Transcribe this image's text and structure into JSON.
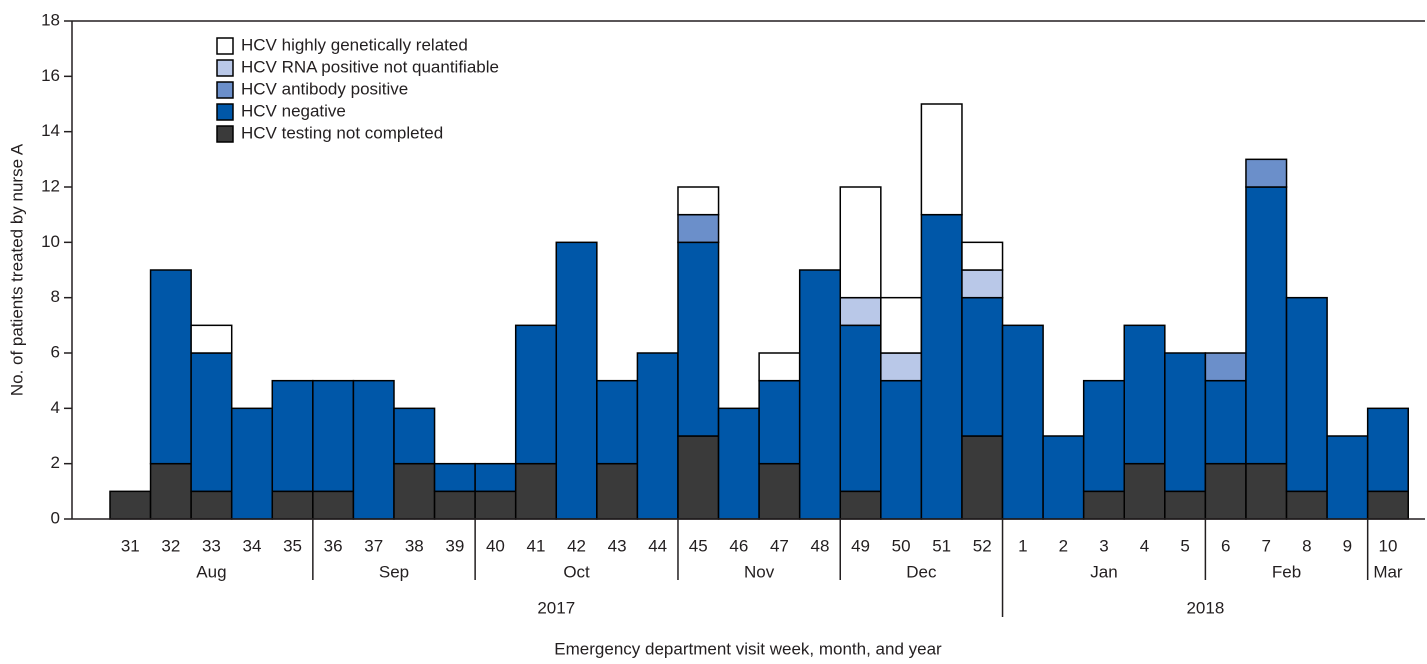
{
  "chart_data": {
    "type": "bar",
    "stacked": true,
    "y_label": "No. of patients treated by nurse A",
    "x_label": "Emergency department visit week, month, and year",
    "categories": [
      "31",
      "32",
      "33",
      "34",
      "35",
      "36",
      "37",
      "38",
      "39",
      "40",
      "41",
      "42",
      "43",
      "44",
      "45",
      "46",
      "47",
      "48",
      "49",
      "50",
      "51",
      "52",
      "1",
      "2",
      "3",
      "4",
      "5",
      "6",
      "7",
      "8",
      "9",
      "10"
    ],
    "months": [
      "Aug",
      "Sep",
      "Oct",
      "Nov",
      "Dec",
      "Jan",
      "Feb",
      "Mar"
    ],
    "years": [
      "2017",
      "2018"
    ],
    "series": [
      {
        "name": "HCV testing not completed",
        "color": "#3a3a3a",
        "values": [
          1,
          2,
          1,
          0,
          1,
          1,
          0,
          2,
          1,
          1,
          2,
          0,
          2,
          0,
          3,
          0,
          2,
          0,
          1,
          0,
          0,
          3,
          0,
          0,
          1,
          2,
          1,
          2,
          2,
          1,
          0,
          1
        ]
      },
      {
        "name": "HCV negative",
        "color": "#0057a8",
        "values": [
          0,
          7,
          5,
          4,
          4,
          4,
          5,
          2,
          1,
          1,
          5,
          10,
          3,
          6,
          7,
          4,
          3,
          9,
          6,
          5,
          11,
          5,
          7,
          3,
          4,
          5,
          5,
          3,
          10,
          7,
          3,
          3
        ]
      },
      {
        "name": "HCV antibody positive",
        "color": "#6b8fca",
        "values": [
          0,
          0,
          0,
          0,
          0,
          0,
          0,
          0,
          0,
          0,
          0,
          0,
          0,
          0,
          1,
          0,
          0,
          0,
          0,
          0,
          0,
          0,
          0,
          0,
          0,
          0,
          0,
          1,
          1,
          0,
          0,
          0
        ]
      },
      {
        "name": "HCV RNA positive not quantifiable",
        "color": "#b9c8e8",
        "values": [
          0,
          0,
          0,
          0,
          0,
          0,
          0,
          0,
          0,
          0,
          0,
          0,
          0,
          0,
          0,
          0,
          0,
          0,
          1,
          1,
          0,
          1,
          0,
          0,
          0,
          0,
          0,
          0,
          0,
          0,
          0,
          0
        ]
      },
      {
        "name": "HCV highly genetically related",
        "color": "#ffffff",
        "values": [
          0,
          0,
          1,
          0,
          0,
          0,
          0,
          0,
          0,
          0,
          0,
          0,
          0,
          0,
          1,
          0,
          1,
          0,
          4,
          2,
          4,
          1,
          0,
          0,
          0,
          0,
          0,
          0,
          0,
          0,
          0,
          0
        ]
      }
    ],
    "ylim": [
      0,
      18
    ],
    "yticks": [
      0,
      2,
      4,
      6,
      8,
      10,
      12,
      14,
      16,
      18
    ],
    "legend": "upper left"
  }
}
